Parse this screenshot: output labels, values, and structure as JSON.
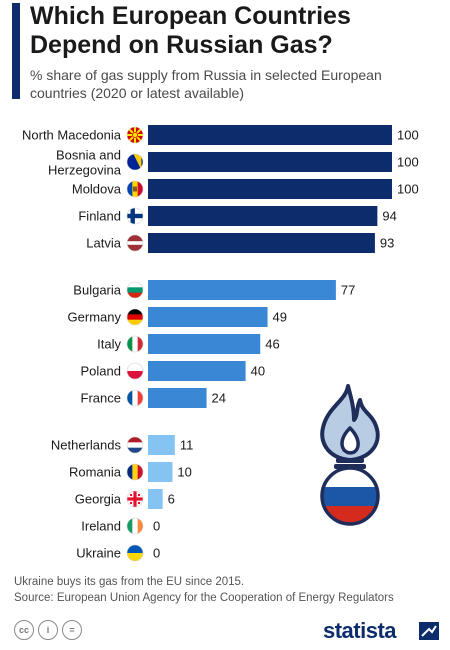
{
  "header": {
    "title": "Which European Countries Depend on Russian Gas?",
    "subtitle": "% share of gas supply from Russia in selected European countries (2020 or latest available)"
  },
  "chart_data": {
    "type": "bar",
    "orientation": "horizontal",
    "title": "Which European Countries Depend on Russian Gas?",
    "subtitle": "% share of gas supply from Russia in selected European countries (2020 or latest available)",
    "xlim": [
      0,
      100
    ],
    "categories": [
      "North Macedonia",
      "Bosnia and Herzegovina",
      "Moldova",
      "Finland",
      "Latvia",
      "Bulgaria",
      "Germany",
      "Italy",
      "Poland",
      "France",
      "Netherlands",
      "Romania",
      "Georgia",
      "Ireland",
      "Ukraine"
    ],
    "values": [
      100,
      100,
      100,
      94,
      93,
      77,
      49,
      46,
      40,
      24,
      11,
      10,
      6,
      0,
      0
    ],
    "groups": [
      {
        "color": "#0d2c6c",
        "members": [
          "North Macedonia",
          "Bosnia and Herzegovina",
          "Moldova",
          "Finland",
          "Latvia"
        ]
      },
      {
        "color": "#3a87d6",
        "members": [
          "Bulgaria",
          "Germany",
          "Italy",
          "Poland",
          "France"
        ]
      },
      {
        "color": "#85c3f2",
        "members": [
          "Netherlands",
          "Romania",
          "Georgia",
          "Ireland",
          "Ukraine"
        ]
      }
    ],
    "flags": {
      "North Macedonia": "flag-north-macedonia",
      "Bosnia and Herzegovina": "flag-bosnia",
      "Moldova": "flag-moldova",
      "Finland": "flag-finland",
      "Latvia": "flag-latvia",
      "Bulgaria": "flag-bulgaria",
      "Germany": "flag-germany",
      "Italy": "flag-italy",
      "Poland": "flag-poland",
      "France": "flag-france",
      "Netherlands": "flag-netherlands",
      "Romania": "flag-romania",
      "Georgia": "flag-georgia",
      "Ireland": "flag-ireland",
      "Ukraine": "flag-ukraine"
    },
    "grid": false,
    "legend": "none"
  },
  "footer": {
    "note": "Ukraine buys its gas from the EU since 2015.",
    "source": "Source: European Union Agency for the Cooperation of Energy Regulators"
  },
  "brand": {
    "name": "statista",
    "color": "#0d2c6c"
  },
  "license_icons": [
    "cc-icon",
    "attribution-icon",
    "no-derivatives-icon"
  ]
}
